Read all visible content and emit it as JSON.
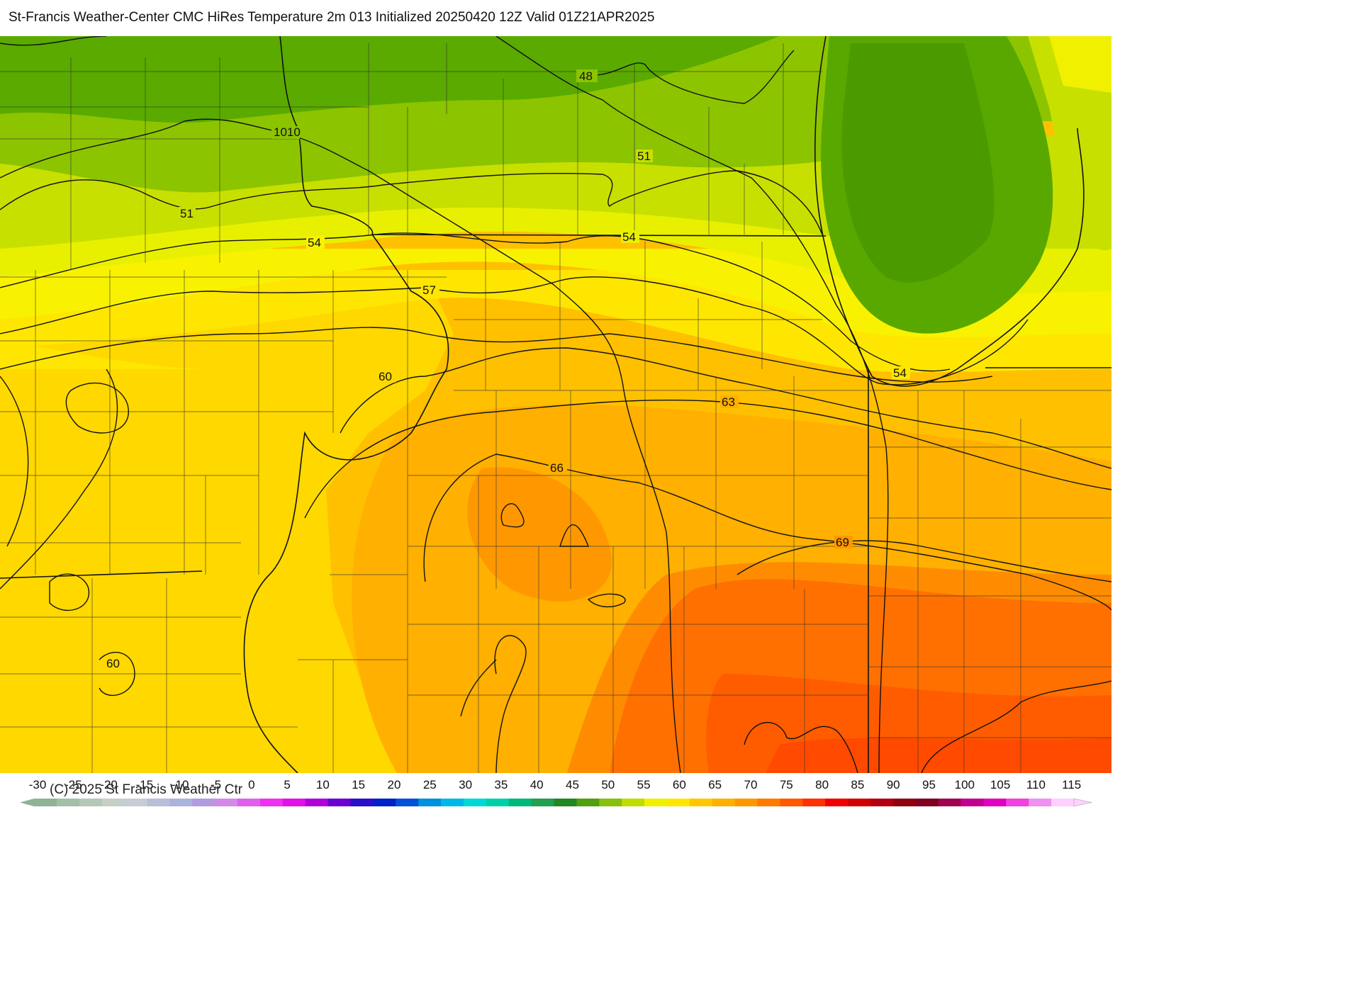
{
  "title": "St-Francis Weather-Center CMC HiRes Temperature 2m  013 Initialized 20250420 12Z Valid 01Z21APR2025",
  "copyright": "(C) 2025 St Francis Weather Ctr",
  "contour_labels": [
    "48",
    "1010",
    "51",
    "51",
    "54",
    "54",
    "57",
    "60",
    "54",
    "63",
    "66",
    "69",
    "60"
  ],
  "scale": {
    "labels": [
      "-30",
      "-25",
      "-20",
      "-15",
      "-10",
      "-5",
      "0",
      "5",
      "10",
      "15",
      "20",
      "25",
      "30",
      "35",
      "40",
      "45",
      "50",
      "55",
      "60",
      "65",
      "70",
      "75",
      "80",
      "85",
      "90",
      "95",
      "100",
      "105",
      "110",
      "115"
    ],
    "colors": [
      "#8fb394",
      "#a3bfa8",
      "#b4c8b6",
      "#c4d0c6",
      "#c8ccd6",
      "#b8c0d8",
      "#aab4dc",
      "#b49ae0",
      "#d488e8",
      "#e060ec",
      "#f030f0",
      "#e010e8",
      "#b000d8",
      "#6a00d0",
      "#2a10c8",
      "#0020c8",
      "#0050d8",
      "#0090e0",
      "#00b8e8",
      "#00d8d8",
      "#00d0a8",
      "#00b878",
      "#20a050",
      "#208820",
      "#50a010",
      "#88c010",
      "#c0dc00",
      "#f0f000",
      "#ffe600",
      "#ffc800",
      "#ffb000",
      "#ff9800",
      "#ff7a00",
      "#ff5a00",
      "#ff3000",
      "#f00000",
      "#d00000",
      "#b00010",
      "#900010",
      "#800020",
      "#a00050",
      "#c00090",
      "#e000c0",
      "#f040e0",
      "#f090f0",
      "#ffd0ff"
    ]
  }
}
